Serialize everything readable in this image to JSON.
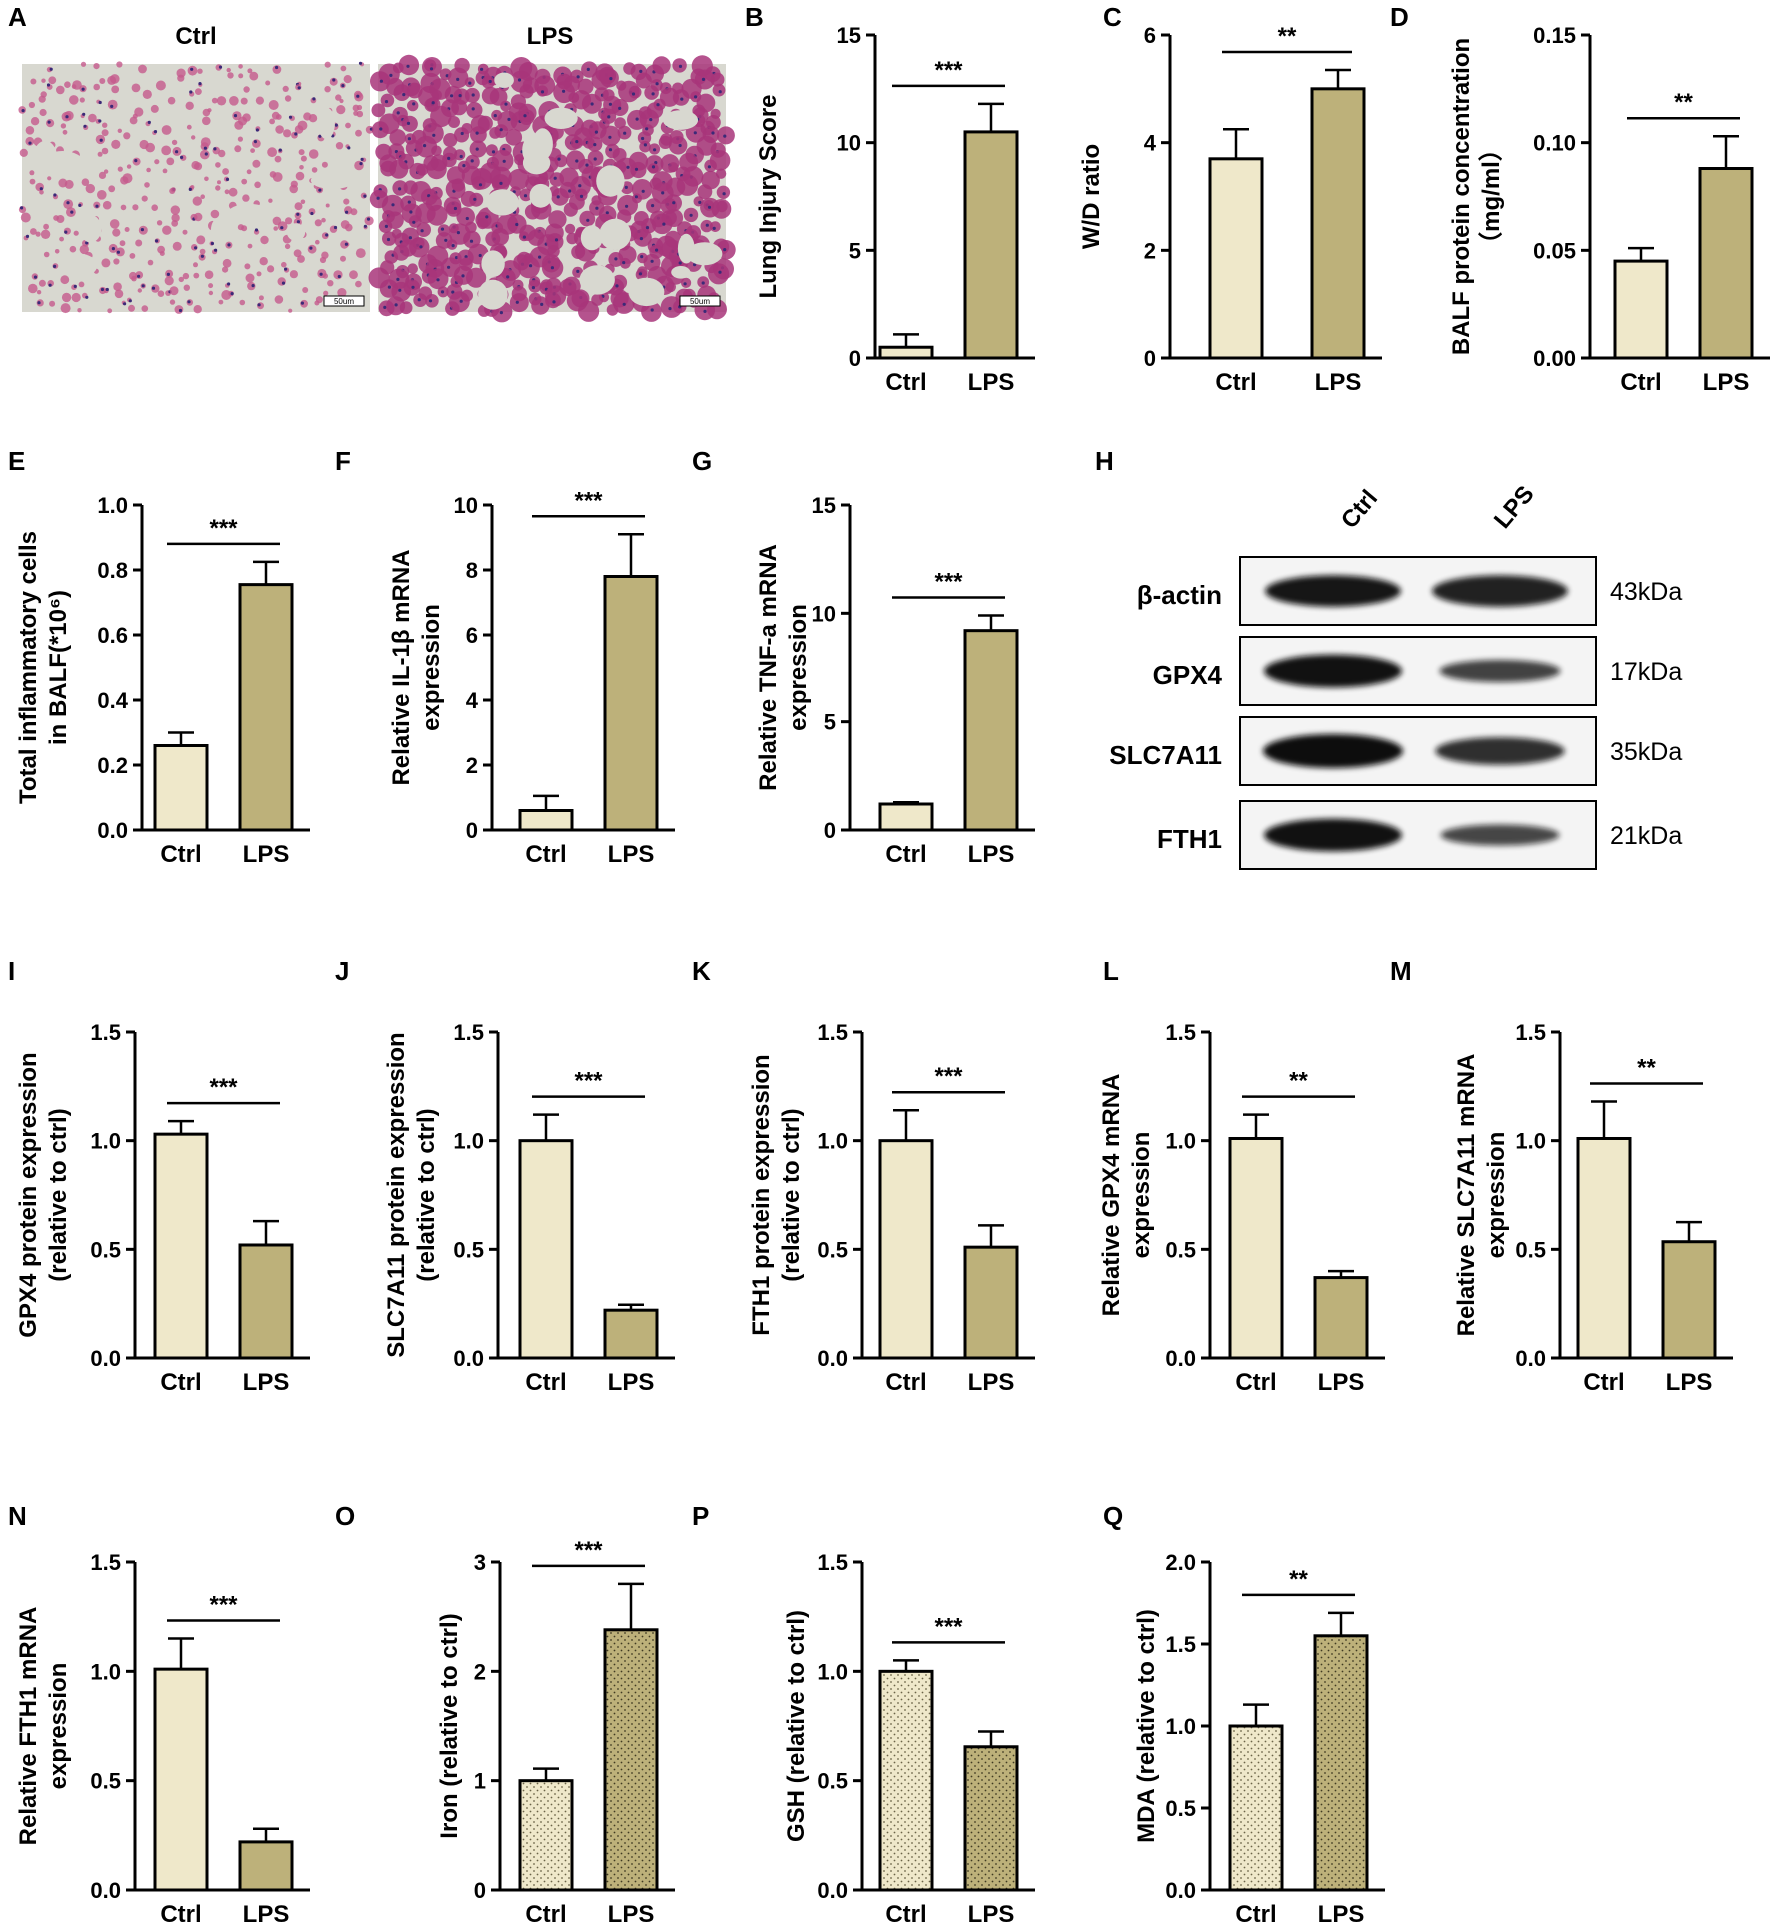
{
  "colors": {
    "ctrl": "#efe8ca",
    "lps": "#bdb17a",
    "edge": "#000000",
    "tissue_bg": "#d8d8d0",
    "tissue_ctrl": "#c65a8c",
    "tissue_lps": "#a8357a"
  },
  "panel_A": {
    "letter": "A",
    "headers": [
      "Ctrl",
      "LPS"
    ],
    "scalebar": "50um"
  },
  "panel_H": {
    "letter": "H",
    "lanes": [
      "Ctrl",
      "LPS"
    ],
    "rows": [
      {
        "name": "β-actin",
        "kda": "43kDa",
        "ctrl": 0.9,
        "lps": 0.9
      },
      {
        "name": "GPX4",
        "kda": "17kDa",
        "ctrl": 0.95,
        "lps": 0.55
      },
      {
        "name": "SLC7A11",
        "kda": "35kDa",
        "ctrl": 1.0,
        "lps": 0.75
      },
      {
        "name": "FTH1",
        "kda": "21kDa",
        "ctrl": 0.95,
        "lps": 0.5
      }
    ]
  },
  "chart_data": [
    {
      "letter": "B",
      "type": "bar",
      "categories": [
        "Ctrl",
        "LPS"
      ],
      "values": [
        0.5,
        10.5
      ],
      "errors": [
        0.6,
        1.3
      ],
      "ylabel": [
        "Lung Injury Score"
      ],
      "ylim": [
        0,
        15
      ],
      "ticks": [
        "0",
        "5",
        "10",
        "15"
      ],
      "sig": "***",
      "pattern": false
    },
    {
      "letter": "C",
      "type": "bar",
      "categories": [
        "Ctrl",
        "LPS"
      ],
      "values": [
        3.7,
        5.0
      ],
      "errors": [
        0.55,
        0.35
      ],
      "ylabel": [
        "W/D ratio"
      ],
      "ylim": [
        0,
        6
      ],
      "ticks": [
        "0",
        "2",
        "4",
        "6"
      ],
      "sig": "**",
      "pattern": false
    },
    {
      "letter": "D",
      "type": "bar",
      "categories": [
        "Ctrl",
        "LPS"
      ],
      "values": [
        0.045,
        0.088
      ],
      "errors": [
        0.006,
        0.015
      ],
      "ylabel": [
        "BALF protein concentration",
        "（mg/ml）"
      ],
      "ylim": [
        0,
        0.15
      ],
      "ticks": [
        "0.00",
        "0.05",
        "0.10",
        "0.15"
      ],
      "sig": "**",
      "pattern": false
    },
    {
      "letter": "E",
      "type": "bar",
      "categories": [
        "Ctrl",
        "LPS"
      ],
      "values": [
        0.26,
        0.755
      ],
      "errors": [
        0.04,
        0.07
      ],
      "ylabel": [
        "Total inflammatory cells",
        "in BALF(*10⁶)"
      ],
      "ylim": [
        0,
        1.0
      ],
      "ticks": [
        "0.0",
        "0.2",
        "0.4",
        "0.6",
        "0.8",
        "1.0"
      ],
      "sig": "***",
      "pattern": false
    },
    {
      "letter": "F",
      "type": "bar",
      "categories": [
        "Ctrl",
        "LPS"
      ],
      "values": [
        0.6,
        7.8
      ],
      "errors": [
        0.45,
        1.3
      ],
      "ylabel": [
        "Relative IL-1β mRNA",
        "expression"
      ],
      "ylim": [
        0,
        10
      ],
      "ticks": [
        "0",
        "2",
        "4",
        "6",
        "8",
        "10"
      ],
      "sig": "***",
      "pattern": false
    },
    {
      "letter": "G",
      "type": "bar",
      "categories": [
        "Ctrl",
        "LPS"
      ],
      "values": [
        1.2,
        9.2
      ],
      "errors": [
        0.08,
        0.7
      ],
      "ylabel": [
        "Relative TNF-a mRNA",
        "expression"
      ],
      "ylim": [
        0,
        15
      ],
      "ticks": [
        "0",
        "5",
        "10",
        "15"
      ],
      "sig": "***",
      "pattern": false
    },
    {
      "letter": "I",
      "type": "bar",
      "categories": [
        "Ctrl",
        "LPS"
      ],
      "values": [
        1.03,
        0.52
      ],
      "errors": [
        0.06,
        0.11
      ],
      "ylabel": [
        "GPX4 protein expression",
        "(relative to ctrl)"
      ],
      "ylim": [
        0,
        1.5
      ],
      "ticks": [
        "0.0",
        "0.5",
        "1.0",
        "1.5"
      ],
      "sig": "***",
      "pattern": false
    },
    {
      "letter": "J",
      "type": "bar",
      "categories": [
        "Ctrl",
        "LPS"
      ],
      "values": [
        1.0,
        0.22
      ],
      "errors": [
        0.12,
        0.025
      ],
      "ylabel": [
        "SLC7A11 protein expression",
        "(relative to ctrl)"
      ],
      "ylim": [
        0,
        1.5
      ],
      "ticks": [
        "0.0",
        "0.5",
        "1.0",
        "1.5"
      ],
      "sig": "***",
      "pattern": false
    },
    {
      "letter": "K",
      "type": "bar",
      "categories": [
        "Ctrl",
        "LPS"
      ],
      "values": [
        1.0,
        0.51
      ],
      "errors": [
        0.14,
        0.1
      ],
      "ylabel": [
        "FTH1 protein expression",
        "(relative to ctrl)"
      ],
      "ylim": [
        0,
        1.5
      ],
      "ticks": [
        "0.0",
        "0.5",
        "1.0",
        "1.5"
      ],
      "sig": "***",
      "pattern": false
    },
    {
      "letter": "L",
      "type": "bar",
      "categories": [
        "Ctrl",
        "LPS"
      ],
      "values": [
        1.01,
        0.37
      ],
      "errors": [
        0.11,
        0.03
      ],
      "ylabel": [
        "Relative GPX4 mRNA",
        "expression"
      ],
      "ylim": [
        0,
        1.5
      ],
      "ticks": [
        "0.0",
        "0.5",
        "1.0",
        "1.5"
      ],
      "sig": "**",
      "pattern": false
    },
    {
      "letter": "M",
      "type": "bar",
      "categories": [
        "Ctrl",
        "LPS"
      ],
      "values": [
        1.01,
        0.535
      ],
      "errors": [
        0.17,
        0.09
      ],
      "ylabel": [
        "Relative SLC7A11 mRNA",
        "expression"
      ],
      "ylim": [
        0,
        1.5
      ],
      "ticks": [
        "0.0",
        "0.5",
        "1.0",
        "1.5"
      ],
      "sig": "**",
      "pattern": false
    },
    {
      "letter": "N",
      "type": "bar",
      "categories": [
        "Ctrl",
        "LPS"
      ],
      "values": [
        1.01,
        0.22
      ],
      "errors": [
        0.14,
        0.06
      ],
      "ylabel": [
        "Relative FTH1 mRNA",
        "expression"
      ],
      "ylim": [
        0,
        1.5
      ],
      "ticks": [
        "0.0",
        "0.5",
        "1.0",
        "1.5"
      ],
      "sig": "***",
      "pattern": false
    },
    {
      "letter": "O",
      "type": "bar",
      "categories": [
        "Ctrl",
        "LPS"
      ],
      "values": [
        1.0,
        2.38
      ],
      "errors": [
        0.11,
        0.42
      ],
      "ylabel": [
        "Iron (relative to ctrl)"
      ],
      "ylim": [
        0,
        3
      ],
      "ticks": [
        "0",
        "1",
        "2",
        "3"
      ],
      "sig": "***",
      "pattern": true
    },
    {
      "letter": "P",
      "type": "bar",
      "categories": [
        "Ctrl",
        "LPS"
      ],
      "values": [
        1.0,
        0.655
      ],
      "errors": [
        0.05,
        0.07
      ],
      "ylabel": [
        "GSH (relative to ctrl)"
      ],
      "ylim": [
        0,
        1.5
      ],
      "ticks": [
        "0.0",
        "0.5",
        "1.0",
        "1.5"
      ],
      "sig": "***",
      "pattern": true
    },
    {
      "letter": "Q",
      "type": "bar",
      "categories": [
        "Ctrl",
        "LPS"
      ],
      "values": [
        1.0,
        1.55
      ],
      "errors": [
        0.13,
        0.14
      ],
      "ylabel": [
        "MDA (relative to ctrl)"
      ],
      "ylim": [
        0,
        2.0
      ],
      "ticks": [
        "0.0",
        "0.5",
        "1.0",
        "1.5",
        "2.0"
      ],
      "sig": "**",
      "pattern": true
    }
  ]
}
